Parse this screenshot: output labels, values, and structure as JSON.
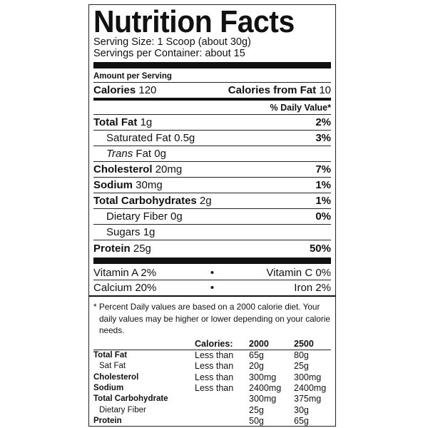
{
  "title": "Nutrition Facts",
  "serving_size": "Serving Size: 1 Scoop (about 30g)",
  "servings_per_container": "Servings per Container: about 15",
  "amount_per_serving": "Amount per Serving",
  "calories": {
    "label": "Calories",
    "value": "120",
    "from_fat_label": "Calories from Fat",
    "from_fat_value": "10"
  },
  "daily_value_header": "% Daily Value*",
  "nutrients": [
    {
      "name": "Total Fat",
      "amount": "1g",
      "dv": "2%"
    },
    {
      "name": "Saturated Fat",
      "amount": "0.5g",
      "dv": "3%"
    },
    {
      "name": "Trans",
      "name_suffix": "Fat",
      "amount": "0g",
      "dv": ""
    },
    {
      "name": "Cholesterol",
      "amount": "20mg",
      "dv": "7%"
    },
    {
      "name": "Sodium",
      "amount": "30mg",
      "dv": "1%"
    },
    {
      "name": "Total Carbohydrates",
      "amount": "2g",
      "dv": "1%"
    },
    {
      "name": "Dietary Fiber",
      "amount": "0g",
      "dv": "0%"
    },
    {
      "name": "Sugars",
      "amount": "1g",
      "dv": ""
    },
    {
      "name": "Protein",
      "amount": "25g",
      "dv": "50%"
    }
  ],
  "vitamins": [
    {
      "left": "Vitamin A  2%",
      "right": "Vitamin C  0%"
    },
    {
      "left": "Calcium  20%",
      "right": "Iron  2%"
    }
  ],
  "bullet": "•",
  "footnote": "* Percent Daily values are based on a 2000 calorie diet. Your daily values may be higher or lower depending on your calorie needs.",
  "reference": {
    "header": {
      "label": "Calories:",
      "c2000": "2000",
      "c2500": "2500"
    },
    "rows": [
      {
        "name": "Total Fat",
        "cond": "Less than",
        "v2000": "65g",
        "v2500": "80g"
      },
      {
        "name": "Sat Fat",
        "cond": "Less than",
        "v2000": "20g",
        "v2500": "25g"
      },
      {
        "name": "Cholesterol",
        "cond": "Less than",
        "v2000": "300mg",
        "v2500": "300mg"
      },
      {
        "name": "Sodium",
        "cond": "Less than",
        "v2000": "2400mg",
        "v2500": "2400mg"
      },
      {
        "name": "Total Carbohydrate",
        "cond": "",
        "v2000": "300mg",
        "v2500": "375mg"
      },
      {
        "name": "Dietary Fiber",
        "cond": "",
        "v2000": "25g",
        "v2500": "30g"
      },
      {
        "name": "Protein",
        "cond": "",
        "v2000": "50g",
        "v2500": "65g"
      }
    ]
  }
}
